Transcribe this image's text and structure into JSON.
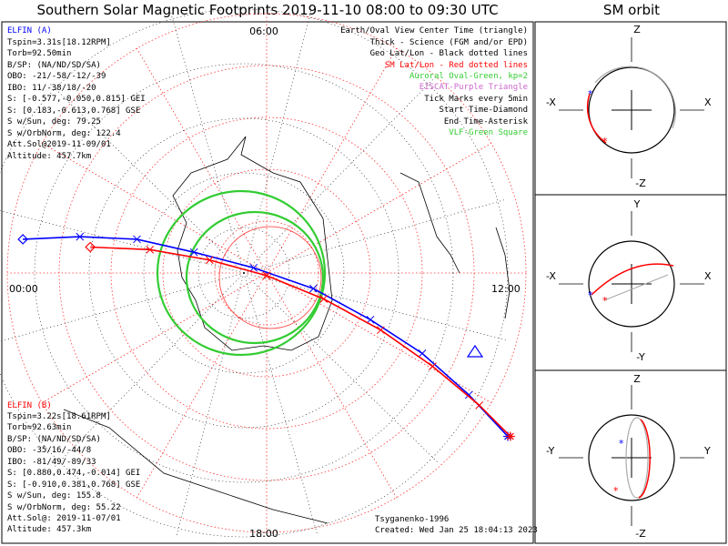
{
  "title": "Southern Solar Magnetic Footprints 2019-11-10 08:00 to 09:30 UTC",
  "sm_title": "SM orbit",
  "colors": {
    "probe_a": "#0000ff",
    "probe_b": "#ff0000",
    "track_a": "#0000cc",
    "track_b": "#ff3333",
    "oval": "#33cc33",
    "grid_red": "#ff3333",
    "grid_black": "#000000",
    "sm_gray": "#aaaaaa",
    "ionisat": "#cc66cc"
  },
  "map": {
    "mlt_labels": {
      "top": "06:00",
      "left": "00:00",
      "right": "12:00",
      "bottom": "18:00"
    }
  },
  "probe_a": {
    "name": "ELFIN (A)",
    "lines": [
      "Tspin=3.31s[18.12RPM]",
      "Torb=92.50min",
      "B/SP: (NA/ND/SD/SA)",
      "OBO: -21/-58/-12/-39",
      "IBO: 11/-38/18/-20",
      "S: [-0.577,-0.050,0.815] GEI",
      "S: [0.183,-0.613,0.768] GSE",
      "S w/Sun, deg: 79.25",
      "S w/OrbNorm, deg: 122.4",
      "Att.Sol@2019-11-09/01",
      "Altitude: 457.7km"
    ]
  },
  "probe_b": {
    "name": "ELFIN (B)",
    "lines": [
      "Tspin=3.22s[18.61RPM]",
      "Torb=92.63min",
      "B/SP: (NA/ND/SD/SA)",
      "OBO: -35/16/-44/8",
      "IBO: -81/49/-89/33",
      "S: [0.880,0.474,-0.014] GEI",
      "S: [-0.910,0.381,0.768] GSE",
      "S w/Sun, deg: 155.8",
      "S w/OrbNorm, deg: 55.22",
      "Att.Sol@: 2019-11-07/01",
      "Altitude: 457.3km"
    ]
  },
  "legend": [
    {
      "text": "Earth/Oval View Center Time (triangle)",
      "color": "#000000"
    },
    {
      "text": "Thick - Science (FGM and/or EPD)",
      "color": "#000000"
    },
    {
      "text": "Geo Lat/Lon - Black dotted lines",
      "color": "#000000"
    },
    {
      "text": "SM Lat/Lon - Red dotted lines",
      "color": "#ff0000"
    },
    {
      "text": "Auroral Oval-Green, kp=2",
      "color": "#33cc33"
    },
    {
      "text": "EISCAT-Purple Triangle",
      "color": "#cc66cc"
    },
    {
      "text": "Tick Marks every 5min",
      "color": "#000000"
    },
    {
      "text": "Start Time-Diamond",
      "color": "#000000"
    },
    {
      "text": "End Time-Asterisk",
      "color": "#000000"
    },
    {
      "text": "VLF-Green Square",
      "color": "#33cc33"
    }
  ],
  "footer": {
    "model": "Tsyganenko-1996",
    "created": "Created: Wed Jan 25 18:04:13 2023"
  },
  "sm_panels": [
    {
      "top": "Z",
      "bottom": "-Z",
      "left": "-X",
      "right": "X"
    },
    {
      "top": "Y",
      "bottom": "-Y",
      "left": "-X",
      "right": "X"
    },
    {
      "top": "Z",
      "bottom": "-Z",
      "left": "-Y",
      "right": "Y"
    }
  ],
  "chart_data": {
    "type": "polar-map",
    "projection": "southern SM polar view, center = magnetic pole",
    "sm_lat_rings_deg": [
      -80,
      -70,
      -60,
      -50,
      -40
    ],
    "mlt_spokes_hours": [
      0,
      2,
      4,
      6,
      8,
      10,
      12,
      14,
      16,
      18,
      20,
      22
    ],
    "tracks": [
      {
        "name": "ELFIN (A)",
        "color": "#0000ff",
        "points_xy_frac": [
          [
            -0.94,
            0.13
          ],
          [
            -0.72,
            0.14
          ],
          [
            -0.5,
            0.13
          ],
          [
            -0.28,
            0.08
          ],
          [
            -0.05,
            0.02
          ],
          [
            0.18,
            -0.06
          ],
          [
            0.4,
            -0.18
          ],
          [
            0.6,
            -0.31
          ],
          [
            0.78,
            -0.47
          ],
          [
            0.93,
            -0.63
          ]
        ]
      },
      {
        "name": "ELFIN (B)",
        "color": "#ff0000",
        "points_xy_frac": [
          [
            -0.68,
            0.1
          ],
          [
            -0.45,
            0.09
          ],
          [
            -0.22,
            0.05
          ],
          [
            0.0,
            -0.01
          ],
          [
            0.22,
            -0.1
          ],
          [
            0.44,
            -0.22
          ],
          [
            0.64,
            -0.36
          ],
          [
            0.82,
            -0.51
          ],
          [
            0.94,
            -0.63
          ]
        ]
      }
    ],
    "auroral_oval_kp": 2
  }
}
